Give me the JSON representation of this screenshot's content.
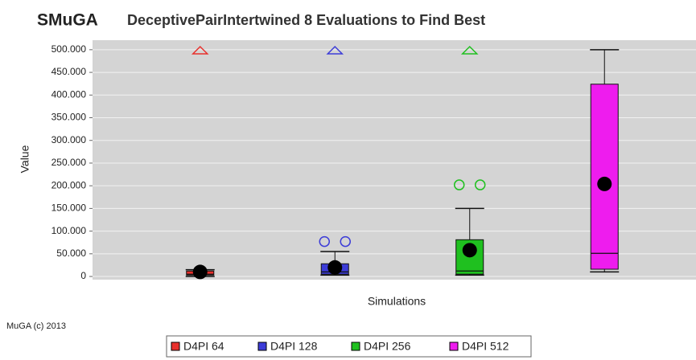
{
  "chart_data": {
    "type": "boxplot",
    "title_brand": "SMuGA",
    "title": "DeceptivePairIntertwined 8  Evaluations to Find Best",
    "y_label": "Value",
    "x_label": "Simulations",
    "footer": "MuGA (c) 2013",
    "ylim": [
      -7000,
      521000
    ],
    "yticks": [
      {
        "value": 0,
        "label": "0"
      },
      {
        "value": 50000,
        "label": "50.000"
      },
      {
        "value": 100000,
        "label": "100.000"
      },
      {
        "value": 150000,
        "label": "150.000"
      },
      {
        "value": 200000,
        "label": "200.000"
      },
      {
        "value": 250000,
        "label": "250.000"
      },
      {
        "value": 300000,
        "label": "300.000"
      },
      {
        "value": 350000,
        "label": "350.000"
      },
      {
        "value": 400000,
        "label": "400.000"
      },
      {
        "value": 450000,
        "label": "450.000"
      },
      {
        "value": 500000,
        "label": "500.000"
      }
    ],
    "grid": true,
    "legend": "bottom",
    "series": [
      {
        "name": "D4PI 64",
        "color": "#e8302c",
        "min": 0,
        "q1": 3000,
        "median": 5000,
        "q3": 12000,
        "max": 15000,
        "mean": 10000,
        "outliers": [],
        "far_out": true
      },
      {
        "name": "D4PI 128",
        "color": "#3c3cd8",
        "min": 3000,
        "q1": 5000,
        "median": 10000,
        "q3": 28000,
        "max": 55000,
        "mean": 20000,
        "outliers": [
          77000,
          77000
        ],
        "far_out": true
      },
      {
        "name": "D4PI 256",
        "color": "#1fc01f",
        "min": 3000,
        "q1": 5000,
        "median": 12000,
        "q3": 81000,
        "max": 150000,
        "mean": 58000,
        "outliers": [
          202000,
          202000
        ],
        "far_out": true
      },
      {
        "name": "D4PI 512",
        "color": "#ee1cee",
        "min": 10000,
        "q1": 16000,
        "median": 51000,
        "q3": 424000,
        "max": 500000,
        "mean": 204000,
        "outliers": [],
        "far_out": false
      }
    ]
  }
}
